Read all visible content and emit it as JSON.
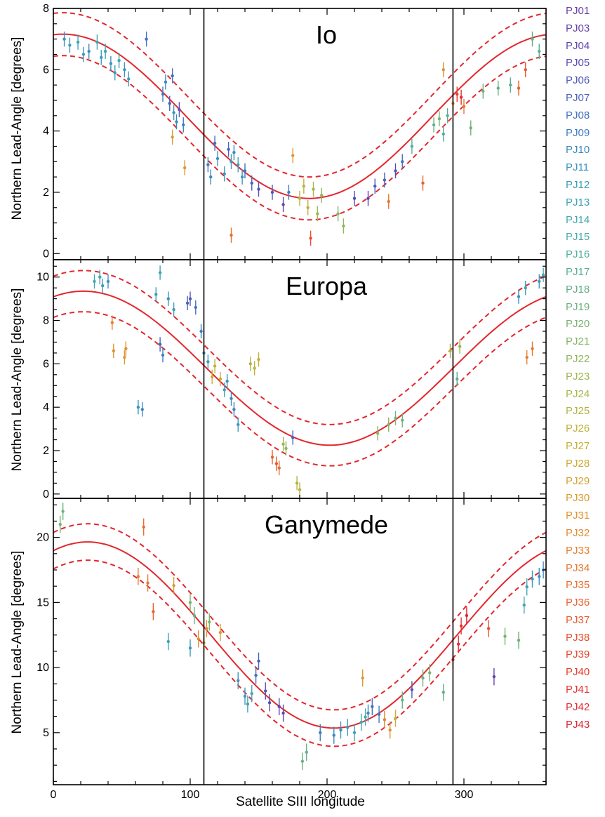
{
  "figure": {
    "xlabel": "Satellite SIII longitude",
    "ylabel": "Northern Lead-Angle [degrees]"
  },
  "legend": [
    {
      "label": "PJ01",
      "color": "#6a3fa8"
    },
    {
      "label": "PJ03",
      "color": "#6541aa"
    },
    {
      "label": "PJ04",
      "color": "#5e46ad"
    },
    {
      "label": "PJ05",
      "color": "#574db2"
    },
    {
      "label": "PJ06",
      "color": "#4f57b6"
    },
    {
      "label": "PJ07",
      "color": "#4863ba"
    },
    {
      "label": "PJ08",
      "color": "#4270bd"
    },
    {
      "label": "PJ09",
      "color": "#3e7dbf"
    },
    {
      "label": "PJ10",
      "color": "#3c89bf"
    },
    {
      "label": "PJ11",
      "color": "#3b93bd"
    },
    {
      "label": "PJ12",
      "color": "#3c9bb9"
    },
    {
      "label": "PJ13",
      "color": "#3fa2b4"
    },
    {
      "label": "PJ14",
      "color": "#43a7ae"
    },
    {
      "label": "PJ15",
      "color": "#49aaa6"
    },
    {
      "label": "PJ16",
      "color": "#51ad9d"
    },
    {
      "label": "PJ17",
      "color": "#5aae93"
    },
    {
      "label": "PJ18",
      "color": "#64b088"
    },
    {
      "label": "PJ19",
      "color": "#6fb17d"
    },
    {
      "label": "PJ20",
      "color": "#7ab272"
    },
    {
      "label": "PJ21",
      "color": "#86b367"
    },
    {
      "label": "PJ22",
      "color": "#92b45c"
    },
    {
      "label": "PJ23",
      "color": "#9db552"
    },
    {
      "label": "PJ24",
      "color": "#a8b549"
    },
    {
      "label": "PJ25",
      "color": "#b2b441"
    },
    {
      "label": "PJ26",
      "color": "#bcb23a"
    },
    {
      "label": "PJ27",
      "color": "#c4ae35"
    },
    {
      "label": "PJ28",
      "color": "#cca932"
    },
    {
      "label": "PJ29",
      "color": "#d3a230"
    },
    {
      "label": "PJ30",
      "color": "#d99b2f"
    },
    {
      "label": "PJ31",
      "color": "#de932f"
    },
    {
      "label": "PJ32",
      "color": "#e28a2f"
    },
    {
      "label": "PJ33",
      "color": "#e5812f"
    },
    {
      "label": "PJ34",
      "color": "#e7772f"
    },
    {
      "label": "PJ35",
      "color": "#e86d2f"
    },
    {
      "label": "PJ36",
      "color": "#e9632f"
    },
    {
      "label": "PJ37",
      "color": "#e9592f"
    },
    {
      "label": "PJ38",
      "color": "#e94f2f"
    },
    {
      "label": "PJ39",
      "color": "#e8452f"
    },
    {
      "label": "PJ40",
      "color": "#e73c30"
    },
    {
      "label": "PJ41",
      "color": "#e53330"
    },
    {
      "label": "PJ42",
      "color": "#e32b31"
    },
    {
      "label": "PJ43",
      "color": "#df2332"
    }
  ],
  "chart_data": [
    {
      "type": "scatter",
      "title": "Io",
      "xlabel": "",
      "ylabel": "Northern Lead-Angle [degrees]",
      "xlim": [
        0,
        360
      ],
      "ylim": [
        -0.2,
        8
      ],
      "xticks": [
        0,
        100,
        200,
        300
      ],
      "yticks": [
        0,
        2,
        4,
        6,
        8
      ],
      "vlines": [
        110,
        292
      ],
      "model": {
        "mean": 4.48,
        "amp": 2.68,
        "phase_deg": 7,
        "band": 0.7,
        "color": "#e3272d"
      },
      "points": [
        [
          8,
          7.0,
          "PJ11"
        ],
        [
          12,
          6.8,
          "PJ12"
        ],
        [
          18,
          6.9,
          "PJ13"
        ],
        [
          22,
          6.5,
          "PJ12"
        ],
        [
          26,
          6.6,
          "PJ10"
        ],
        [
          32,
          6.9,
          "PJ14"
        ],
        [
          35,
          6.4,
          "PJ12"
        ],
        [
          38,
          6.6,
          "PJ13"
        ],
        [
          42,
          6.2,
          "PJ11"
        ],
        [
          45,
          5.9,
          "PJ12"
        ],
        [
          48,
          6.3,
          "PJ13"
        ],
        [
          52,
          6.0,
          "PJ11"
        ],
        [
          55,
          5.7,
          "PJ12"
        ],
        [
          68,
          7.0,
          "PJ08"
        ],
        [
          80,
          5.2,
          "PJ09"
        ],
        [
          82,
          5.6,
          "PJ10"
        ],
        [
          85,
          4.9,
          "PJ07"
        ],
        [
          87,
          5.8,
          "PJ08"
        ],
        [
          88,
          4.6,
          "PJ11"
        ],
        [
          90,
          4.3,
          "PJ10"
        ],
        [
          96,
          2.8,
          "PJ30"
        ],
        [
          87,
          3.8,
          "PJ29"
        ],
        [
          92,
          4.7,
          "PJ06"
        ],
        [
          95,
          4.2,
          "PJ09"
        ],
        [
          113,
          2.9,
          "PJ09"
        ],
        [
          115,
          2.5,
          "PJ10"
        ],
        [
          118,
          3.6,
          "PJ08"
        ],
        [
          120,
          3.1,
          "PJ11"
        ],
        [
          125,
          2.6,
          "PJ12"
        ],
        [
          128,
          3.4,
          "PJ07"
        ],
        [
          130,
          3.0,
          "PJ12"
        ],
        [
          132,
          3.3,
          "PJ10"
        ],
        [
          135,
          2.9,
          "PJ13"
        ],
        [
          138,
          2.5,
          "PJ11"
        ],
        [
          140,
          2.7,
          "PJ08"
        ],
        [
          130,
          0.6,
          "PJ35"
        ],
        [
          145,
          2.3,
          "PJ07"
        ],
        [
          150,
          2.1,
          "PJ05"
        ],
        [
          160,
          2.0,
          "PJ06"
        ],
        [
          168,
          1.6,
          "PJ04"
        ],
        [
          172,
          2.0,
          "PJ09"
        ],
        [
          175,
          3.2,
          "PJ30"
        ],
        [
          180,
          1.8,
          "PJ25"
        ],
        [
          183,
          2.2,
          "PJ26"
        ],
        [
          186,
          1.5,
          "PJ27"
        ],
        [
          188,
          0.5,
          "PJ38"
        ],
        [
          190,
          2.1,
          "PJ24"
        ],
        [
          193,
          1.3,
          "PJ23"
        ],
        [
          196,
          1.9,
          "PJ22"
        ],
        [
          208,
          1.3,
          "PJ21"
        ],
        [
          212,
          0.9,
          "PJ22"
        ],
        [
          220,
          1.8,
          "PJ05"
        ],
        [
          230,
          1.8,
          "PJ04"
        ],
        [
          235,
          2.2,
          "PJ06"
        ],
        [
          242,
          2.4,
          "PJ07"
        ],
        [
          245,
          1.7,
          "PJ34"
        ],
        [
          250,
          2.7,
          "PJ05"
        ],
        [
          255,
          3.0,
          "PJ08"
        ],
        [
          262,
          3.5,
          "PJ16"
        ],
        [
          270,
          2.3,
          "PJ36"
        ],
        [
          278,
          4.2,
          "PJ18"
        ],
        [
          282,
          4.4,
          "PJ20"
        ],
        [
          285,
          3.9,
          "PJ16"
        ],
        [
          288,
          4.5,
          "PJ17"
        ],
        [
          292,
          4.9,
          "PJ32"
        ],
        [
          295,
          5.2,
          "PJ40"
        ],
        [
          298,
          5.1,
          "PJ42"
        ],
        [
          300,
          4.8,
          "PJ34"
        ],
        [
          305,
          4.1,
          "PJ19"
        ],
        [
          314,
          5.3,
          "PJ19"
        ],
        [
          325,
          5.4,
          "PJ18"
        ],
        [
          334,
          5.5,
          "PJ17"
        ],
        [
          340,
          5.4,
          "PJ36"
        ],
        [
          345,
          6.0,
          "PJ37"
        ],
        [
          350,
          7.0,
          "PJ18"
        ],
        [
          355,
          6.6,
          "PJ17"
        ],
        [
          285,
          6.0,
          "PJ31"
        ]
      ]
    },
    {
      "type": "scatter",
      "title": "Europa",
      "xlabel": "",
      "ylabel": "Northern Lead-Angle [degrees]",
      "xlim": [
        0,
        360
      ],
      "ylim": [
        -0.2,
        10.8
      ],
      "xticks": [
        0,
        100,
        200,
        300
      ],
      "yticks": [
        0,
        2,
        4,
        6,
        8,
        10
      ],
      "vlines": [
        110,
        292
      ],
      "model": {
        "mean": 5.8,
        "amp": 3.55,
        "phase_deg": 22,
        "band": 0.95,
        "color": "#e3272d"
      },
      "points": [
        [
          30,
          9.8,
          "PJ14"
        ],
        [
          34,
          10.0,
          "PJ13"
        ],
        [
          36,
          9.6,
          "PJ12"
        ],
        [
          40,
          9.8,
          "PJ11"
        ],
        [
          43,
          7.9,
          "PJ33"
        ],
        [
          44,
          6.6,
          "PJ31"
        ],
        [
          52,
          6.3,
          "PJ30"
        ],
        [
          53,
          6.7,
          "PJ32"
        ],
        [
          62,
          4.0,
          "PJ11"
        ],
        [
          65,
          3.9,
          "PJ10"
        ],
        [
          75,
          9.2,
          "PJ12"
        ],
        [
          78,
          10.2,
          "PJ13"
        ],
        [
          78,
          6.9,
          "PJ07"
        ],
        [
          80,
          6.4,
          "PJ09"
        ],
        [
          84,
          9.0,
          "PJ11"
        ],
        [
          88,
          8.5,
          "PJ12"
        ],
        [
          98,
          8.8,
          "PJ07"
        ],
        [
          100,
          9.0,
          "PJ06"
        ],
        [
          104,
          8.6,
          "PJ08"
        ],
        [
          108,
          7.5,
          "PJ09"
        ],
        [
          110,
          6.5,
          "PJ10"
        ],
        [
          113,
          6.1,
          "PJ12"
        ],
        [
          116,
          5.4,
          "PJ27"
        ],
        [
          118,
          5.9,
          "PJ26"
        ],
        [
          122,
          5.3,
          "PJ28"
        ],
        [
          125,
          4.8,
          "PJ13"
        ],
        [
          127,
          5.2,
          "PJ11"
        ],
        [
          130,
          4.4,
          "PJ10"
        ],
        [
          132,
          3.9,
          "PJ09"
        ],
        [
          135,
          3.2,
          "PJ12"
        ],
        [
          144,
          6.0,
          "PJ25"
        ],
        [
          147,
          5.8,
          "PJ26"
        ],
        [
          150,
          6.2,
          "PJ27"
        ],
        [
          160,
          1.7,
          "PJ36"
        ],
        [
          163,
          1.4,
          "PJ37"
        ],
        [
          165,
          1.2,
          "PJ35"
        ],
        [
          168,
          2.3,
          "PJ23"
        ],
        [
          170,
          2.1,
          "PJ22"
        ],
        [
          175,
          2.6,
          "PJ07"
        ],
        [
          178,
          0.5,
          "PJ25"
        ],
        [
          180,
          0.2,
          "PJ26"
        ],
        [
          237,
          2.8,
          "PJ22"
        ],
        [
          245,
          3.2,
          "PJ21"
        ],
        [
          250,
          3.5,
          "PJ20"
        ],
        [
          255,
          3.4,
          "PJ19"
        ],
        [
          290,
          6.6,
          "PJ24"
        ],
        [
          297,
          6.8,
          "PJ23"
        ],
        [
          295,
          5.3,
          "PJ17"
        ],
        [
          345,
          9.5,
          "PJ13"
        ],
        [
          350,
          6.7,
          "PJ34"
        ],
        [
          355,
          9.8,
          "PJ12"
        ],
        [
          358,
          10.1,
          "PJ14"
        ],
        [
          346,
          6.3,
          "PJ33"
        ],
        [
          340,
          9.1,
          "PJ11"
        ]
      ]
    },
    {
      "type": "scatter",
      "title": "Ganymede",
      "xlabel": "Satellite SIII longitude",
      "ylabel": "Northern Lead-Angle [degrees]",
      "xlim": [
        0,
        360
      ],
      "ylim": [
        1,
        23
      ],
      "xticks": [
        0,
        100,
        200,
        300
      ],
      "yticks": [
        5,
        10,
        15,
        20
      ],
      "vlines": [
        110,
        292
      ],
      "model": {
        "mean": 12.5,
        "amp": 7.15,
        "phase_deg": 25,
        "band": 1.4,
        "color": "#e3272d"
      },
      "points": [
        [
          5,
          21.0,
          "PJ20"
        ],
        [
          7,
          22.0,
          "PJ19"
        ],
        [
          62,
          17.0,
          "PJ33"
        ],
        [
          66,
          20.8,
          "PJ35"
        ],
        [
          69,
          16.5,
          "PJ34"
        ],
        [
          73,
          14.3,
          "PJ36"
        ],
        [
          84,
          12.0,
          "PJ13"
        ],
        [
          88,
          16.3,
          "PJ30"
        ],
        [
          100,
          11.5,
          "PJ12"
        ],
        [
          100,
          15.0,
          "PJ20"
        ],
        [
          103,
          14.0,
          "PJ18"
        ],
        [
          106,
          12.2,
          "PJ31"
        ],
        [
          110,
          11.9,
          "PJ29"
        ],
        [
          112,
          13.0,
          "PJ32"
        ],
        [
          114,
          13.5,
          "PJ20"
        ],
        [
          122,
          12.7,
          "PJ30"
        ],
        [
          135,
          9.0,
          "PJ11"
        ],
        [
          140,
          7.8,
          "PJ12"
        ],
        [
          142,
          7.2,
          "PJ13"
        ],
        [
          145,
          8.0,
          "PJ14"
        ],
        [
          148,
          9.4,
          "PJ08"
        ],
        [
          150,
          10.5,
          "PJ07"
        ],
        [
          155,
          8.2,
          "PJ06"
        ],
        [
          158,
          7.3,
          "PJ05"
        ],
        [
          165,
          7.0,
          "PJ04"
        ],
        [
          168,
          6.5,
          "PJ03"
        ],
        [
          182,
          2.8,
          "PJ19"
        ],
        [
          185,
          3.5,
          "PJ18"
        ],
        [
          195,
          5.0,
          "PJ09"
        ],
        [
          205,
          4.8,
          "PJ10"
        ],
        [
          210,
          5.2,
          "PJ11"
        ],
        [
          215,
          5.4,
          "PJ12"
        ],
        [
          220,
          5.0,
          "PJ13"
        ],
        [
          225,
          5.8,
          "PJ14"
        ],
        [
          228,
          6.2,
          "PJ15"
        ],
        [
          226,
          9.2,
          "PJ30"
        ],
        [
          230,
          6.5,
          "PJ10"
        ],
        [
          233,
          7.0,
          "PJ08"
        ],
        [
          238,
          6.4,
          "PJ09"
        ],
        [
          242,
          6.0,
          "PJ33"
        ],
        [
          246,
          5.2,
          "PJ31"
        ],
        [
          250,
          6.1,
          "PJ27"
        ],
        [
          255,
          7.5,
          "PJ18"
        ],
        [
          262,
          8.3,
          "PJ06"
        ],
        [
          270,
          9.2,
          "PJ19"
        ],
        [
          275,
          9.6,
          "PJ20"
        ],
        [
          285,
          8.1,
          "PJ18"
        ],
        [
          292,
          10.6,
          "PJ40"
        ],
        [
          296,
          11.8,
          "PJ42"
        ],
        [
          298,
          13.2,
          "PJ41"
        ],
        [
          302,
          14.0,
          "PJ43"
        ],
        [
          318,
          13.0,
          "PJ38"
        ],
        [
          322,
          9.3,
          "PJ03"
        ],
        [
          330,
          12.4,
          "PJ20"
        ],
        [
          340,
          12.1,
          "PJ19"
        ],
        [
          344,
          14.8,
          "PJ14"
        ],
        [
          346,
          16.2,
          "PJ13"
        ],
        [
          350,
          16.8,
          "PJ12"
        ],
        [
          355,
          17.0,
          "PJ11"
        ],
        [
          358,
          17.5,
          "PJ10"
        ]
      ]
    }
  ]
}
